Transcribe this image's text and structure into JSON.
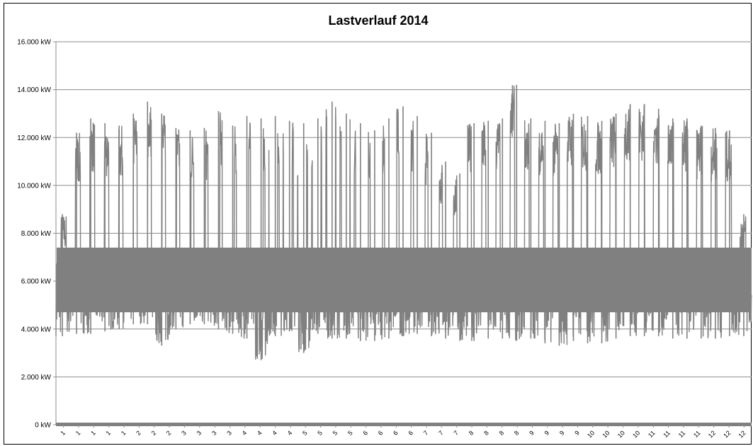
{
  "chart_data": {
    "type": "line",
    "title": "Lastverlauf 2014",
    "xlabel": "",
    "ylabel": "",
    "ylim": [
      0,
      16000
    ],
    "y_unit": "kW",
    "y_tick_labels": [
      "0 kW",
      "2.000 kW",
      "4.000 kW",
      "6.000 kW",
      "8.000 kW",
      "10.000 kW",
      "12.000 kW",
      "14.000 kW",
      "16.000 kW"
    ],
    "x_tick_labels": [
      "1",
      "1",
      "1",
      "1",
      "1",
      "2",
      "2",
      "2",
      "3",
      "3",
      "3",
      "3",
      "4",
      "4",
      "4",
      "4",
      "5",
      "5",
      "5",
      "5",
      "6",
      "6",
      "6",
      "6",
      "7",
      "7",
      "7",
      "8",
      "8",
      "8",
      "8",
      "9",
      "9",
      "9",
      "9",
      "10",
      "10",
      "10",
      "10",
      "11",
      "11",
      "11",
      "11",
      "12",
      "12",
      "12"
    ],
    "grid": true,
    "legend": "none",
    "series": [
      {
        "color": "#808080",
        "x_range": [
          "Jan",
          "Dec"
        ],
        "weekly_peak_kw": [
          8800,
          12200,
          12800,
          12600,
          12500,
          13000,
          13500,
          13000,
          12400,
          12300,
          12400,
          13100,
          12500,
          12900,
          12800,
          12900,
          12700,
          12600,
          12800,
          13500,
          13000,
          12600,
          12300,
          12800,
          13300,
          12900,
          12200,
          11000,
          10500,
          12600,
          12700,
          12800,
          14200,
          12800,
          12700,
          12600,
          13000,
          12900,
          12700,
          13000,
          13400,
          13400,
          13200,
          12800,
          12800,
          12500,
          12400,
          12300,
          8800
        ],
        "weekly_min_kw": [
          3700,
          3800,
          3800,
          3900,
          4000,
          4200,
          4200,
          3300,
          4000,
          4200,
          4200,
          4000,
          3800,
          3600,
          2700,
          3700,
          3900,
          3000,
          3800,
          3600,
          3600,
          3500,
          3500,
          3600,
          3700,
          3800,
          3700,
          3600,
          3500,
          3500,
          3600,
          3600,
          3500,
          3600,
          3400,
          3300,
          3500,
          3400,
          3400,
          3600,
          3700,
          3700,
          3700,
          3600,
          3600,
          3600,
          3600,
          3700,
          3700
        ]
      }
    ]
  }
}
